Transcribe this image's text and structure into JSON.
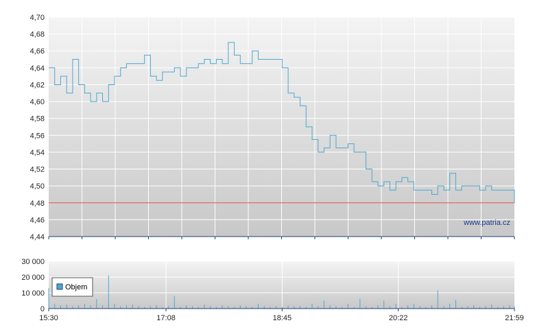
{
  "colors": {
    "price_line": "#4aa8d0",
    "reference_line": "#e04040",
    "volume_bars": "#4aa8d0",
    "grid": "#ffffff",
    "plot_top": "#f4f4f4",
    "plot_bottom": "#c8c8c8",
    "axis": "#1f3f7a"
  },
  "watermark": "www.patria.cz",
  "chart_data": [
    {
      "type": "line",
      "series": [
        {
          "x": [
            "15:30",
            "15:35",
            "15:40",
            "15:45",
            "15:50",
            "15:55",
            "16:00",
            "16:05",
            "16:10",
            "16:15",
            "16:20",
            "16:25",
            "16:30",
            "16:35",
            "16:40",
            "16:45",
            "16:50",
            "16:55",
            "17:00",
            "17:05",
            "17:10",
            "17:15",
            "17:20",
            "17:25",
            "17:30",
            "17:35",
            "17:40",
            "17:45",
            "17:50",
            "17:55",
            "18:00",
            "18:05",
            "18:10",
            "18:15",
            "18:20",
            "18:25",
            "18:30",
            "18:35",
            "18:40",
            "18:45",
            "18:50",
            "18:55",
            "19:00",
            "19:05",
            "19:10",
            "19:15",
            "19:20",
            "19:25",
            "19:30",
            "19:35",
            "19:40",
            "19:45",
            "19:50",
            "19:55",
            "20:00",
            "20:05",
            "20:10",
            "20:15",
            "20:20",
            "20:25",
            "20:30",
            "20:35",
            "20:40",
            "20:45",
            "20:50",
            "20:55",
            "21:00",
            "21:05",
            "21:10",
            "21:15",
            "21:20",
            "21:25",
            "21:30",
            "21:35",
            "21:40",
            "21:45",
            "21:50",
            "21:55",
            "21:59"
          ],
          "values": [
            4.64,
            4.62,
            4.63,
            4.61,
            4.65,
            4.62,
            4.61,
            4.6,
            4.61,
            4.6,
            4.62,
            4.63,
            4.64,
            4.645,
            4.645,
            4.645,
            4.655,
            4.63,
            4.625,
            4.635,
            4.635,
            4.64,
            4.63,
            4.64,
            4.64,
            4.645,
            4.65,
            4.645,
            4.65,
            4.645,
            4.67,
            4.655,
            4.645,
            4.645,
            4.66,
            4.65,
            4.65,
            4.65,
            4.65,
            4.64,
            4.61,
            4.605,
            4.595,
            4.57,
            4.555,
            4.54,
            4.545,
            4.56,
            4.545,
            4.545,
            4.55,
            4.54,
            4.54,
            4.52,
            4.505,
            4.5,
            4.505,
            4.495,
            4.505,
            4.51,
            4.505,
            4.495,
            4.495,
            4.495,
            4.49,
            4.5,
            4.495,
            4.515,
            4.495,
            4.5,
            4.5,
            4.5,
            4.495,
            4.5,
            4.495,
            4.495,
            4.495,
            4.495,
            4.48
          ]
        },
        {
          "values": [
            4.48,
            4.48
          ]
        }
      ],
      "ylim": [
        4.44,
        4.7
      ],
      "yticks": [
        "4,44",
        "4,46",
        "4,48",
        "4,50",
        "4,52",
        "4,54",
        "4,56",
        "4,58",
        "4,60",
        "4,62",
        "4,64",
        "4,66",
        "4,68",
        "4,70"
      ],
      "reference_value": 4.48,
      "grid": true
    },
    {
      "type": "bar",
      "series": [
        {
          "name": "Objem",
          "x": [
            "15:30",
            "15:35",
            "15:40",
            "15:45",
            "15:50",
            "15:55",
            "16:00",
            "16:05",
            "16:10",
            "16:15",
            "16:20",
            "16:25",
            "16:30",
            "16:35",
            "16:40",
            "16:45",
            "16:50",
            "16:55",
            "17:00",
            "17:05",
            "17:10",
            "17:15",
            "17:20",
            "17:25",
            "17:30",
            "17:35",
            "17:40",
            "17:45",
            "17:50",
            "17:55",
            "18:00",
            "18:05",
            "18:10",
            "18:15",
            "18:20",
            "18:25",
            "18:30",
            "18:35",
            "18:40",
            "18:45",
            "18:50",
            "18:55",
            "19:00",
            "19:05",
            "19:10",
            "19:15",
            "19:20",
            "19:25",
            "19:30",
            "19:35",
            "19:40",
            "19:45",
            "19:50",
            "19:55",
            "20:00",
            "20:05",
            "20:10",
            "20:15",
            "20:20",
            "20:25",
            "20:30",
            "20:35",
            "20:40",
            "20:45",
            "20:50",
            "20:55",
            "21:00",
            "21:05",
            "21:10",
            "21:15",
            "21:20",
            "21:25",
            "21:30",
            "21:35",
            "21:40",
            "21:45",
            "21:50",
            "21:55",
            "21:59"
          ],
          "values": [
            13000,
            3000,
            2000,
            2500,
            1500,
            2000,
            3000,
            2000,
            6000,
            2000,
            21000,
            3000,
            1500,
            2000,
            2500,
            1500,
            1000,
            1500,
            2000,
            1000,
            1500,
            8000,
            1000,
            2000,
            1500,
            1000,
            2500,
            1500,
            1000,
            2000,
            1500,
            1000,
            2000,
            1500,
            1000,
            3000,
            1500,
            1000,
            1500,
            1000,
            2000,
            1500,
            1500,
            1000,
            3000,
            1500,
            5000,
            2000,
            1500,
            1000,
            3000,
            1000,
            6000,
            1500,
            1000,
            2000,
            5000,
            1500,
            3000,
            1000,
            2000,
            3000,
            1500,
            1000,
            2000,
            11500,
            1500,
            3000,
            5500,
            1000,
            1500,
            2000,
            1000,
            1500,
            2500,
            1000,
            1500,
            2000,
            1500
          ]
        }
      ],
      "ylim": [
        0,
        30000
      ],
      "yticks": [
        "0",
        "10 000",
        "20 000",
        "30 000"
      ],
      "xticks": [
        "15:30",
        "17:08",
        "18:45",
        "20:22",
        "21:59"
      ],
      "legend": "top-left",
      "grid": true
    }
  ]
}
